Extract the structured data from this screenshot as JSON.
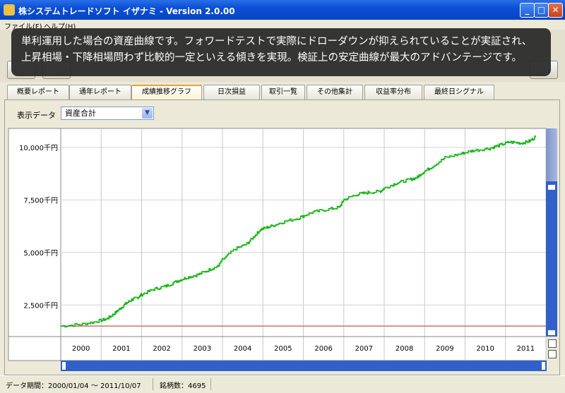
{
  "window": {
    "title": "株システムトレードソフト イザナミ - Version 2.0.00"
  },
  "menu": [
    {
      "label": "ファイル(F)"
    },
    {
      "label": "ヘルプ(H)"
    }
  ],
  "tooltip": {
    "line1": "単利運用した場合の資産曲線です。フォワードテストで実際にドローダウンが抑えられていることが実証され、",
    "line2": "上昇相場・下降相場問わず比較的一定といえる傾きを実現。検証上の安定曲線が最大のアドバンテージです。"
  },
  "tabs": [
    {
      "label": "概要レポート"
    },
    {
      "label": "通年レポート"
    },
    {
      "label": "成績推移グラフ"
    },
    {
      "label": "日次損益"
    },
    {
      "label": "取引一覧"
    },
    {
      "label": "その他集計"
    },
    {
      "label": "収益率分布"
    },
    {
      "label": "最終日シグナル"
    }
  ],
  "display_selector": {
    "label": "表示データ",
    "value": "資産合計"
  },
  "chart_data": {
    "type": "line",
    "x_categories": [
      "2000",
      "2001",
      "2002",
      "2003",
      "2004",
      "2005",
      "2006",
      "2007",
      "2008",
      "2009",
      "2010",
      "2011"
    ],
    "y_ticks": [
      {
        "value": 2500,
        "label": "2,500千円"
      },
      {
        "value": 5000,
        "label": "5,000千円"
      },
      {
        "value": 7500,
        "label": "7,500千円"
      },
      {
        "value": 10000,
        "label": "10,000千円"
      }
    ],
    "ylim": [
      1000,
      10900
    ],
    "baseline": {
      "value": 1500,
      "color": "#d07070"
    },
    "series": [
      {
        "color": "#18b418",
        "x": [
          2000.0,
          2000.5,
          2000.9,
          2001.15,
          2001.3,
          2001.45,
          2001.6,
          2001.75,
          2001.9,
          2002.0,
          2002.3,
          2002.6,
          2002.9,
          2003.1,
          2003.4,
          2003.7,
          2003.9,
          2004.0,
          2004.3,
          2004.6,
          2004.8,
          2004.95,
          2005.2,
          2005.5,
          2005.9,
          2006.2,
          2006.6,
          2006.9,
          2007.0,
          2007.3,
          2007.6,
          2007.9,
          2008.0,
          2008.3,
          2008.6,
          2008.8,
          2008.95,
          2009.2,
          2009.5,
          2009.9,
          2010.2,
          2010.6,
          2010.85,
          2011.1,
          2011.4,
          2011.6,
          2011.75
        ],
        "values": [
          1500,
          1580,
          1720,
          1850,
          2050,
          2300,
          2550,
          2750,
          2850,
          3000,
          3250,
          3400,
          3650,
          3800,
          3950,
          4200,
          4350,
          4650,
          5150,
          5400,
          5800,
          6100,
          6250,
          6450,
          6650,
          6900,
          7050,
          7150,
          7500,
          7750,
          7850,
          7900,
          8050,
          8300,
          8450,
          8550,
          8800,
          9100,
          9500,
          9700,
          9850,
          9950,
          10100,
          10250,
          10200,
          10300,
          10500
        ]
      }
    ]
  },
  "status": {
    "period": "データ期間：2000/01/04 〜 2011/10/07",
    "count": "銘柄数：4695"
  },
  "colors": {
    "titlebar": "#0a4fd6",
    "series": "#18b418",
    "baseline": "#d07070"
  }
}
